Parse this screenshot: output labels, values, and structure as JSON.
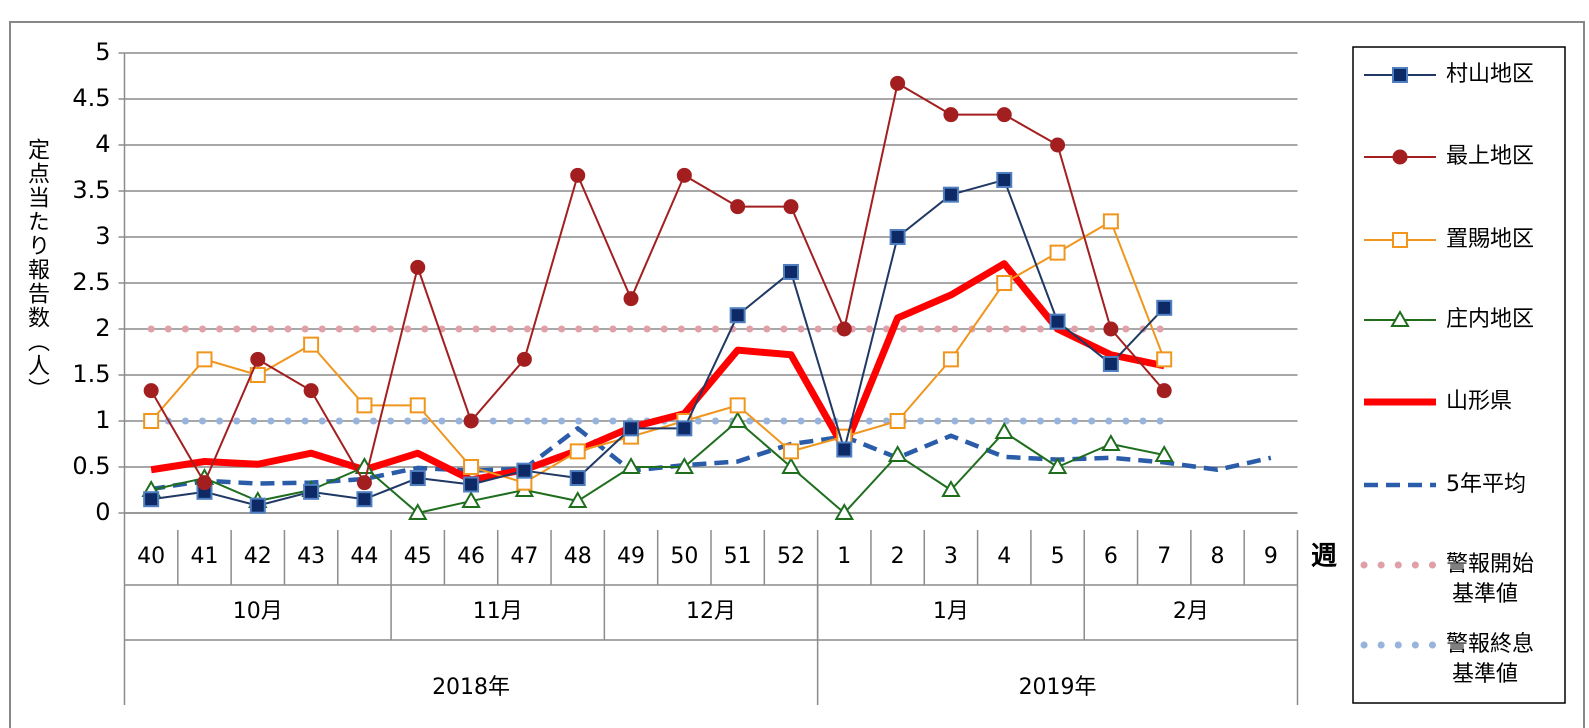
{
  "chart_data": {
    "type": "line",
    "y_label": "定点当たり報告数（人）",
    "x_label": "週",
    "categories": [
      "40",
      "41",
      "42",
      "43",
      "44",
      "45",
      "46",
      "47",
      "48",
      "49",
      "50",
      "51",
      "52",
      "1",
      "2",
      "3",
      "4",
      "5",
      "6",
      "7",
      "8",
      "9"
    ],
    "month_groups": [
      {
        "label": "10月",
        "first": "40",
        "last": "44"
      },
      {
        "label": "11月",
        "first": "45",
        "last": "48"
      },
      {
        "label": "12月",
        "first": "49",
        "last": "52"
      },
      {
        "label": "1月",
        "first": "1",
        "last": "5"
      },
      {
        "label": "2月",
        "first": "6",
        "last": "9"
      }
    ],
    "year_groups": [
      {
        "label": "2018年",
        "first": "40",
        "last": "52"
      },
      {
        "label": "2019年",
        "first": "1",
        "last": "9"
      }
    ],
    "ylim": [
      0,
      5
    ],
    "yticks": [
      0,
      0.5,
      1,
      1.5,
      2,
      2.5,
      3,
      3.5,
      4,
      4.5,
      5
    ],
    "grid": true,
    "legend": "right",
    "series": [
      {
        "name": "村山地区",
        "color": "#1f3864",
        "marker": "square-filled",
        "values": [
          0.15,
          0.23,
          0.08,
          0.23,
          0.15,
          0.38,
          0.31,
          0.46,
          0.38,
          0.92,
          0.92,
          2.15,
          2.62,
          0.69,
          3.0,
          3.46,
          3.62,
          2.08,
          1.62,
          2.23,
          null,
          null
        ]
      },
      {
        "name": "最上地区",
        "color": "#a31f1f",
        "marker": "circle",
        "values": [
          1.33,
          0.33,
          1.67,
          1.33,
          0.33,
          2.67,
          1.0,
          1.67,
          3.67,
          2.33,
          3.67,
          3.33,
          3.33,
          2.0,
          4.67,
          4.33,
          4.33,
          4.0,
          2.0,
          1.33,
          null,
          null
        ]
      },
      {
        "name": "置賜地区",
        "color": "#f0961e",
        "marker": "square-open",
        "values": [
          1.0,
          1.67,
          1.5,
          1.83,
          1.17,
          1.17,
          0.5,
          0.33,
          0.67,
          0.83,
          1.0,
          1.17,
          0.67,
          0.83,
          1.0,
          1.67,
          2.5,
          2.83,
          3.17,
          1.67,
          null,
          null
        ]
      },
      {
        "name": "庄内地区",
        "color": "#1e6e1e",
        "marker": "triangle",
        "values": [
          0.25,
          0.38,
          0.13,
          0.25,
          0.5,
          0,
          0.13,
          0.25,
          0.13,
          0.5,
          0.5,
          1.0,
          0.5,
          0,
          0.63,
          0.25,
          0.88,
          0.5,
          0.75,
          0.63,
          null,
          null
        ]
      },
      {
        "name": "山形県",
        "color": "#ff0000",
        "line": "thick",
        "values": [
          0.47,
          0.56,
          0.53,
          0.65,
          0.47,
          0.65,
          0.36,
          0.47,
          0.68,
          0.93,
          1.08,
          1.77,
          1.72,
          0.7,
          2.12,
          2.37,
          2.71,
          2.0,
          1.72,
          1.6,
          null,
          null
        ]
      },
      {
        "name": "5年平均",
        "color": "#2a5caa",
        "line": "dashed",
        "values": [
          0.26,
          0.35,
          0.32,
          0.33,
          0.37,
          0.49,
          0.46,
          0.48,
          0.92,
          0.46,
          0.52,
          0.56,
          0.75,
          0.83,
          0.6,
          0.84,
          0.61,
          0.58,
          0.6,
          0.55,
          0.47,
          0.6
        ]
      },
      {
        "name": "警報開始基準値",
        "color": "#e0a0a8",
        "line": "dotted",
        "values": [
          2,
          2,
          2,
          2,
          2,
          2,
          2,
          2,
          2,
          2,
          2,
          2,
          2,
          2,
          2,
          2,
          2,
          2,
          2,
          2,
          null,
          null
        ]
      },
      {
        "name": "警報終息基準値",
        "color": "#98b4dc",
        "line": "dotted",
        "values": [
          1,
          1,
          1,
          1,
          1,
          1,
          1,
          1,
          1,
          1,
          1,
          1,
          1,
          1,
          1,
          1,
          1,
          1,
          1,
          1,
          null,
          null
        ]
      }
    ]
  }
}
